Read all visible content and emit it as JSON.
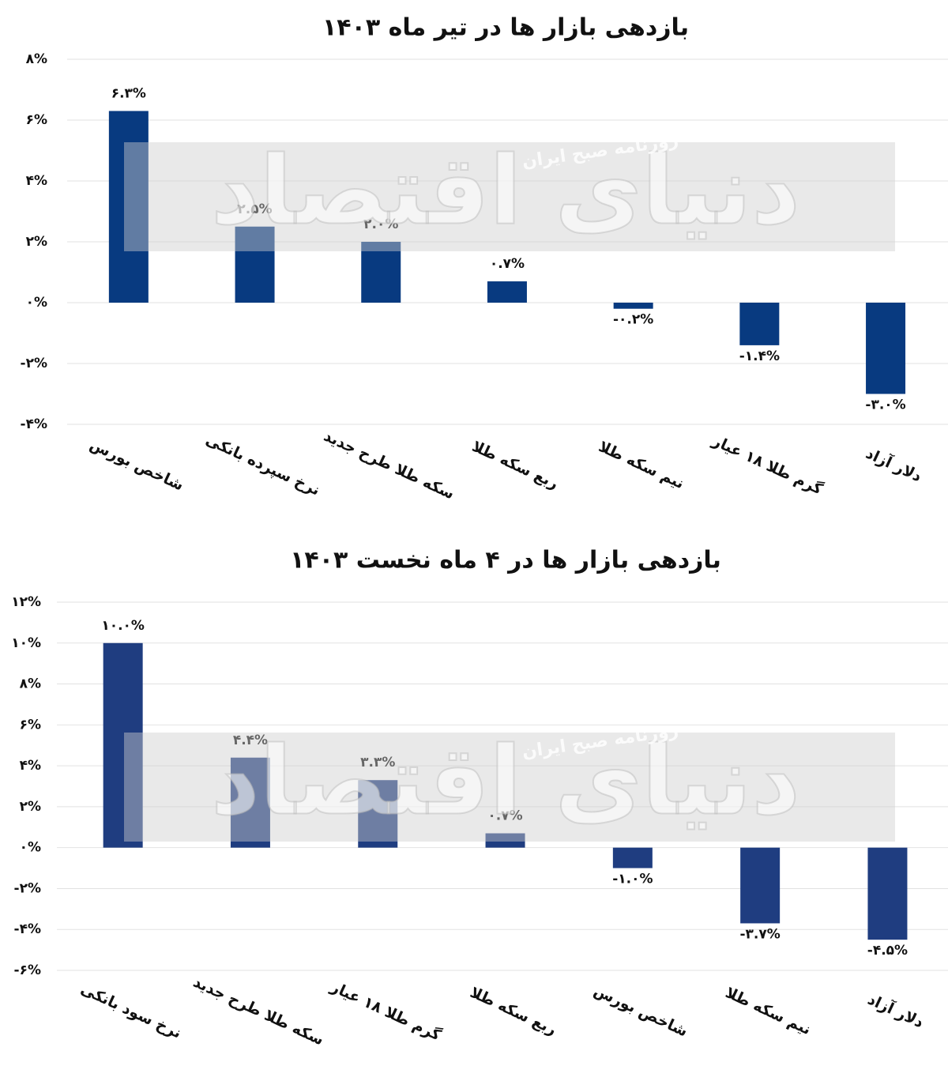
{
  "watermark": {
    "main": "دنیای اقتصاد",
    "sub": "روزنامه صبح ایران"
  },
  "chart_data": [
    {
      "type": "bar",
      "title": "بازدهی بازار ها در تیر ماه ۱۴۰۳",
      "categories": [
        "شاخص بورس",
        "نرخ سپرده بانکی",
        "سکه طلا طرح جدید",
        "ربع سکه طلا",
        "نیم سکه طلا",
        "گرم طلا ۱۸ عیار",
        "دلار آزاد"
      ],
      "values": [
        6.3,
        2.5,
        2.0,
        0.7,
        -0.2,
        -1.4,
        -3.0
      ],
      "value_labels": [
        "۶.۳%",
        "۲.۵%",
        "۲.۰%",
        "۰.۷%",
        "-۰.۲%",
        "-۱.۴%",
        "-۳.۰%"
      ],
      "color": "#083a80",
      "ylim": [
        -4,
        8
      ],
      "yticks": [
        {
          "value": -4,
          "label": "-۴%"
        },
        {
          "value": -2,
          "label": "-۲%"
        },
        {
          "value": 0,
          "label": "۰%"
        },
        {
          "value": 2,
          "label": "۲%"
        },
        {
          "value": 4,
          "label": "۴%"
        },
        {
          "value": 6,
          "label": "۶%"
        },
        {
          "value": 8,
          "label": "۸%"
        }
      ],
      "grid": true
    },
    {
      "type": "bar",
      "title": "بازدهی بازار ها در ۴ ماه نخست ۱۴۰۳",
      "categories": [
        "نرخ سود بانکی",
        "سکه طلا طرح جدید",
        "گرم طلا ۱۸ عیار",
        "ربع سکه طلا",
        "شاخص بورس",
        "نیم سکه طلا",
        "دلار آزاد"
      ],
      "values": [
        10.0,
        4.4,
        3.3,
        0.7,
        -1.0,
        -3.7,
        -4.5
      ],
      "value_labels": [
        "۱۰.۰%",
        "۴.۴%",
        "۳.۳%",
        "۰.۷%",
        "-۱.۰%",
        "-۳.۷%",
        "-۴.۵%"
      ],
      "color": "#1f3d80",
      "ylim": [
        -6,
        12
      ],
      "yticks": [
        {
          "value": -6,
          "label": "-۶%"
        },
        {
          "value": -4,
          "label": "-۴%"
        },
        {
          "value": -2,
          "label": "-۲%"
        },
        {
          "value": 0,
          "label": "۰%"
        },
        {
          "value": 2,
          "label": "۲%"
        },
        {
          "value": 4,
          "label": "۴%"
        },
        {
          "value": 6,
          "label": "۶%"
        },
        {
          "value": 8,
          "label": "۸%"
        },
        {
          "value": 10,
          "label": "۱۰%"
        },
        {
          "value": 12,
          "label": "۱۲%"
        }
      ],
      "grid": true
    }
  ]
}
